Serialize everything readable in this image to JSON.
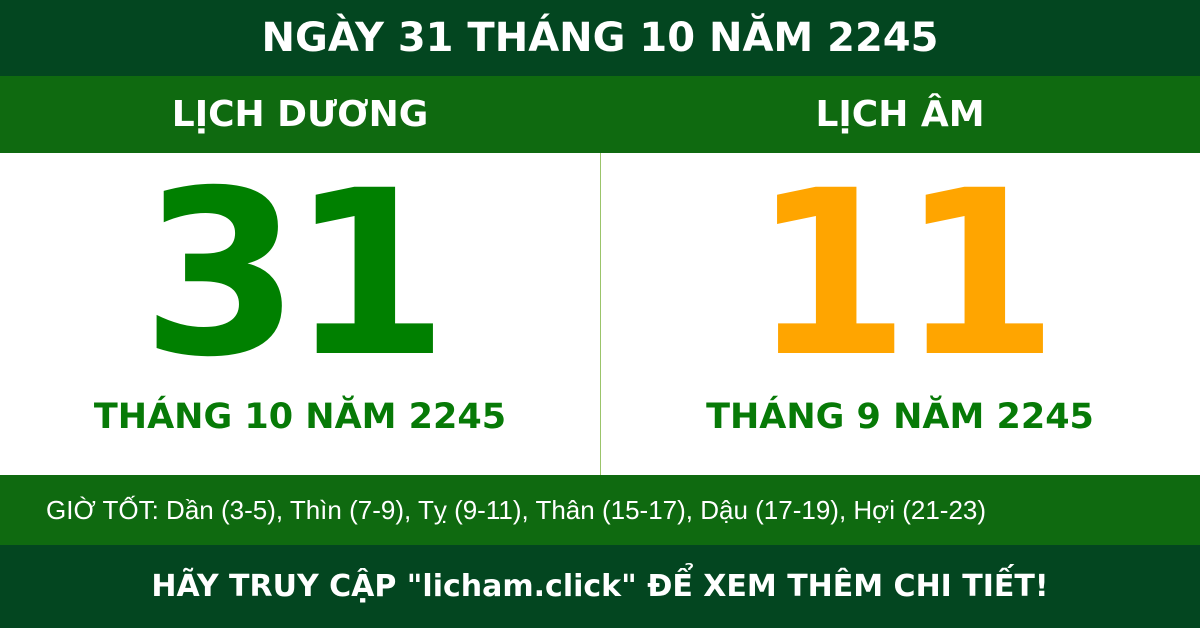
{
  "header": {
    "title": "NGÀY 31 THÁNG 10 NĂM 2245"
  },
  "solar": {
    "label": "LỊCH DƯƠNG",
    "day": "31",
    "month_year": "THÁNG 10 NĂM 2245"
  },
  "lunar": {
    "label": "LỊCH ÂM",
    "day": "11",
    "month_year": "THÁNG 9 NĂM 2245"
  },
  "good_hours": "GIỜ TỐT: Dần (3-5), Thìn (7-9), Tỵ (9-11), Thân (15-17), Dậu (17-19), Hợi (21-23)",
  "footer": "HÃY TRUY CẬP \"licham.click\" ĐỂ XEM THÊM CHI TIẾT!",
  "colors": {
    "dark_green": "#034620",
    "green": "#0f6a10",
    "solar_day": "#008000",
    "lunar_day": "#ffa500"
  }
}
